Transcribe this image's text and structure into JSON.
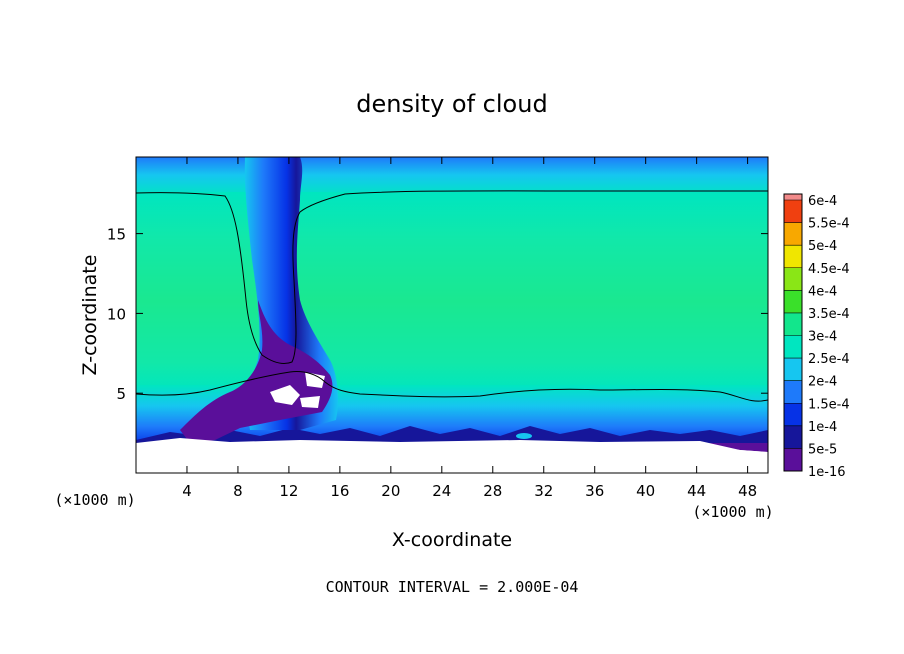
{
  "chart_data": {
    "type": "heatmap",
    "title": "density of cloud",
    "xlabel": "X-coordinate",
    "ylabel": "Z-coordinate",
    "x_unit": "(×1000 m)",
    "xlim": [
      0,
      49.6
    ],
    "ylim": [
      0,
      19.8
    ],
    "x_ticks": [
      4,
      8,
      12,
      16,
      20,
      24,
      28,
      32,
      36,
      40,
      44,
      48
    ],
    "y_ticks": [
      5,
      10,
      15
    ],
    "colorbar": {
      "labels": [
        "1e-16",
        "5e-5",
        "1e-4",
        "1.5e-4",
        "2e-4",
        "2.5e-4",
        "3e-4",
        "3.5e-4",
        "4e-4",
        "4.5e-4",
        "5e-4",
        "5.5e-4",
        "6e-4"
      ],
      "colors": [
        "#5a0f9a",
        "#16169a",
        "#0632e6",
        "#1e7afa",
        "#16c6f0",
        "#00e6c0",
        "#12e68c",
        "#3ae02a",
        "#8ae616",
        "#f0e600",
        "#f8a800",
        "#f04010",
        "#f28a8a"
      ]
    },
    "footer": "CONTOUR INTERVAL = 2.000E-04"
  }
}
